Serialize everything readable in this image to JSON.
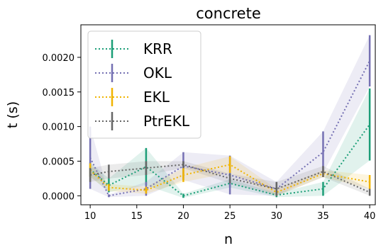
{
  "chart_data": {
    "type": "line",
    "title": "concrete",
    "xlabel": "n",
    "ylabel": "t (s)",
    "x": [
      10,
      12,
      16,
      20,
      25,
      30,
      35,
      40
    ],
    "xticks": [
      10,
      15,
      20,
      25,
      30,
      35,
      40
    ],
    "xtick_labels": [
      "10",
      "15",
      "20",
      "25",
      "30",
      "35",
      "40"
    ],
    "yticks": [
      0.0,
      0.0005,
      0.001,
      0.0015,
      0.002
    ],
    "ytick_labels": [
      "0.0000",
      "0.0005",
      "0.0010",
      "0.0015",
      "0.0020"
    ],
    "xlim": [
      9.0,
      40.6
    ],
    "ylim": [
      -0.00013,
      0.00247
    ],
    "grid": false,
    "legend_position": "top-left",
    "series": [
      {
        "name": "KRR",
        "color": "#1b9e77",
        "linestyle": "dotted",
        "values": [
          0.00038,
          0.00015,
          0.00042,
          0.0,
          0.00018,
          1e-05,
          0.0001,
          0.00103
        ],
        "errors": [
          0.0001,
          0.0001,
          0.00027,
          3e-05,
          6e-05,
          3e-05,
          0.0001,
          0.00052
        ]
      },
      {
        "name": "OKL",
        "color": "#7570b3",
        "linestyle": "dotted",
        "values": [
          0.00055,
          0.0,
          0.0001,
          0.00043,
          0.0003,
          0.0001,
          0.00063,
          0.00195
        ],
        "errors": [
          0.00045,
          2e-05,
          0.0001,
          0.0002,
          0.00028,
          0.0001,
          0.0003,
          0.00037
        ]
      },
      {
        "name": "EKL",
        "color": "#f0b400",
        "linestyle": "dotted",
        "values": [
          0.00037,
          0.00012,
          8e-05,
          0.0003,
          0.00045,
          5e-05,
          0.00032,
          0.0002
        ],
        "errors": [
          0.0001,
          5e-05,
          5e-05,
          0.0001,
          0.00012,
          5e-05,
          5e-05,
          0.0001
        ]
      },
      {
        "name": "PtrEKL",
        "color": "#666666",
        "linestyle": "dotted",
        "values": [
          0.0003,
          0.00035,
          0.0004,
          0.00045,
          0.00025,
          0.0001,
          0.00035,
          5e-05
        ],
        "errors": [
          0.0001,
          0.0001,
          0.0001,
          5e-05,
          7e-05,
          0.0001,
          8e-05,
          5e-05
        ]
      }
    ]
  }
}
